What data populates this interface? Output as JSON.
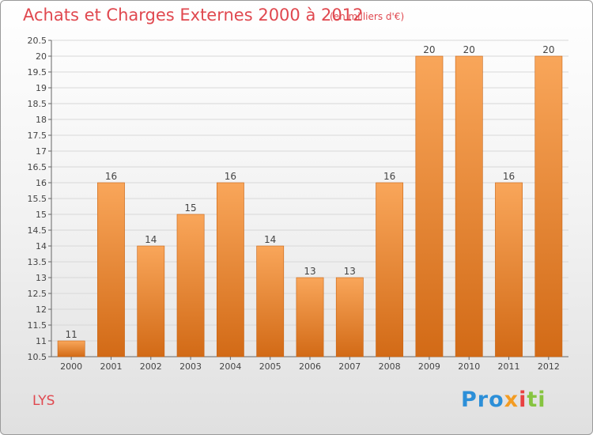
{
  "header": {
    "title": "Achats et Charges Externes 2000 à 2012",
    "subtitle": "(en milliers d'€)"
  },
  "footer": {
    "place": "LYS",
    "logo_parts": [
      "Pro",
      "x",
      "i",
      "ti"
    ]
  },
  "colors": {
    "accent": "#e0484f",
    "bar_top": "#f9a65a",
    "bar_bottom": "#d26a16"
  },
  "chart_data": {
    "type": "bar",
    "categories": [
      "2000",
      "2001",
      "2002",
      "2003",
      "2004",
      "2005",
      "2006",
      "2007",
      "2008",
      "2009",
      "2010",
      "2011",
      "2012"
    ],
    "values": [
      11,
      16,
      14,
      15,
      16,
      14,
      13,
      13,
      16,
      20,
      20,
      16,
      20
    ],
    "value_labels": [
      "11",
      "16",
      "14",
      "15",
      "16",
      "14",
      "13",
      "13",
      "16",
      "20",
      "20",
      "16",
      "20"
    ],
    "title": "Achats et Charges Externes 2000 à 2012",
    "ylim": [
      10.5,
      20.5
    ],
    "yticks": [
      10.5,
      11,
      11.5,
      12,
      12.5,
      13,
      13.5,
      14,
      14.5,
      15,
      15.5,
      16,
      16.5,
      17,
      17.5,
      18,
      18.5,
      19,
      19.5,
      20,
      20.5
    ],
    "ytick_labels": [
      "10.5",
      "11",
      "11.5",
      "12",
      "12.5",
      "13",
      "13.5",
      "14",
      "14.5",
      "15",
      "15.5",
      "16",
      "16.5",
      "17",
      "17.5",
      "18",
      "18.5",
      "19",
      "19.5",
      "20",
      "20.5"
    ],
    "grid": true
  }
}
